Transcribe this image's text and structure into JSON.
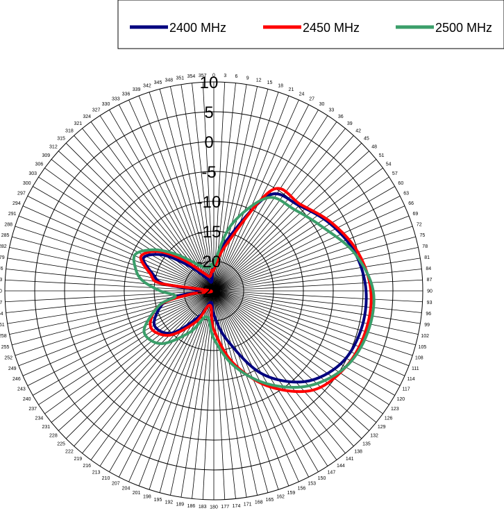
{
  "chart_data": {
    "type": "polar-line",
    "title": "",
    "angle_unit": "deg",
    "angle_ticks_step": 3,
    "angle_direction": "clockwise",
    "angle_zero": "top",
    "radial_range": [
      -25,
      10
    ],
    "radial_ticks": [
      10,
      5,
      0,
      -5,
      -10,
      -15,
      -20,
      -25
    ],
    "grid": true,
    "legend": {
      "placement": "top-right",
      "entries": [
        "2400 MHz",
        "2450 MHz",
        "2500 MHz"
      ]
    },
    "angles": [
      0,
      15,
      30,
      45,
      60,
      75,
      90,
      105,
      120,
      135,
      150,
      165,
      180,
      195,
      210,
      225,
      240,
      255,
      262,
      270,
      278,
      285,
      295,
      305,
      315,
      330,
      345,
      355
    ],
    "series": [
      {
        "name": "2400 MHz",
        "color": "#00007f",
        "values": [
          -21,
          -16,
          -6.5,
          -4.8,
          -2.5,
          -0.5,
          0.5,
          0.5,
          -0.5,
          -3.5,
          -9,
          -16.5,
          -21,
          -23,
          -20,
          -15,
          -13.5,
          -16,
          -19,
          -22.5,
          -16.5,
          -14.5,
          -12,
          -14.5,
          -19,
          -22.5,
          -23.5,
          -22
        ]
      },
      {
        "name": "2450 MHz",
        "color": "#ff0000",
        "values": [
          -21.5,
          -17,
          -5.5,
          -4.5,
          -2.2,
          0,
          1.3,
          1.3,
          0.5,
          -1.5,
          -6.5,
          -12.5,
          -18.5,
          -22.5,
          -19,
          -14.5,
          -12.8,
          -15.5,
          -21,
          -24.5,
          -16,
          -14,
          -11.5,
          -13.5,
          -17.5,
          -21.5,
          -22.5,
          -21.5
        ]
      },
      {
        "name": "2500 MHz",
        "color": "#3b9e6a",
        "values": [
          -20.5,
          -13.5,
          -7,
          -5.8,
          -3.8,
          -0.6,
          1.7,
          1.7,
          0.5,
          -2.5,
          -7,
          -12,
          -17,
          -20.5,
          -17,
          -12.5,
          -11.5,
          -15.5,
          -18.5,
          -16,
          -13,
          -11.5,
          -10.5,
          -13,
          -16.5,
          -20,
          -21,
          -20.5
        ]
      }
    ]
  }
}
